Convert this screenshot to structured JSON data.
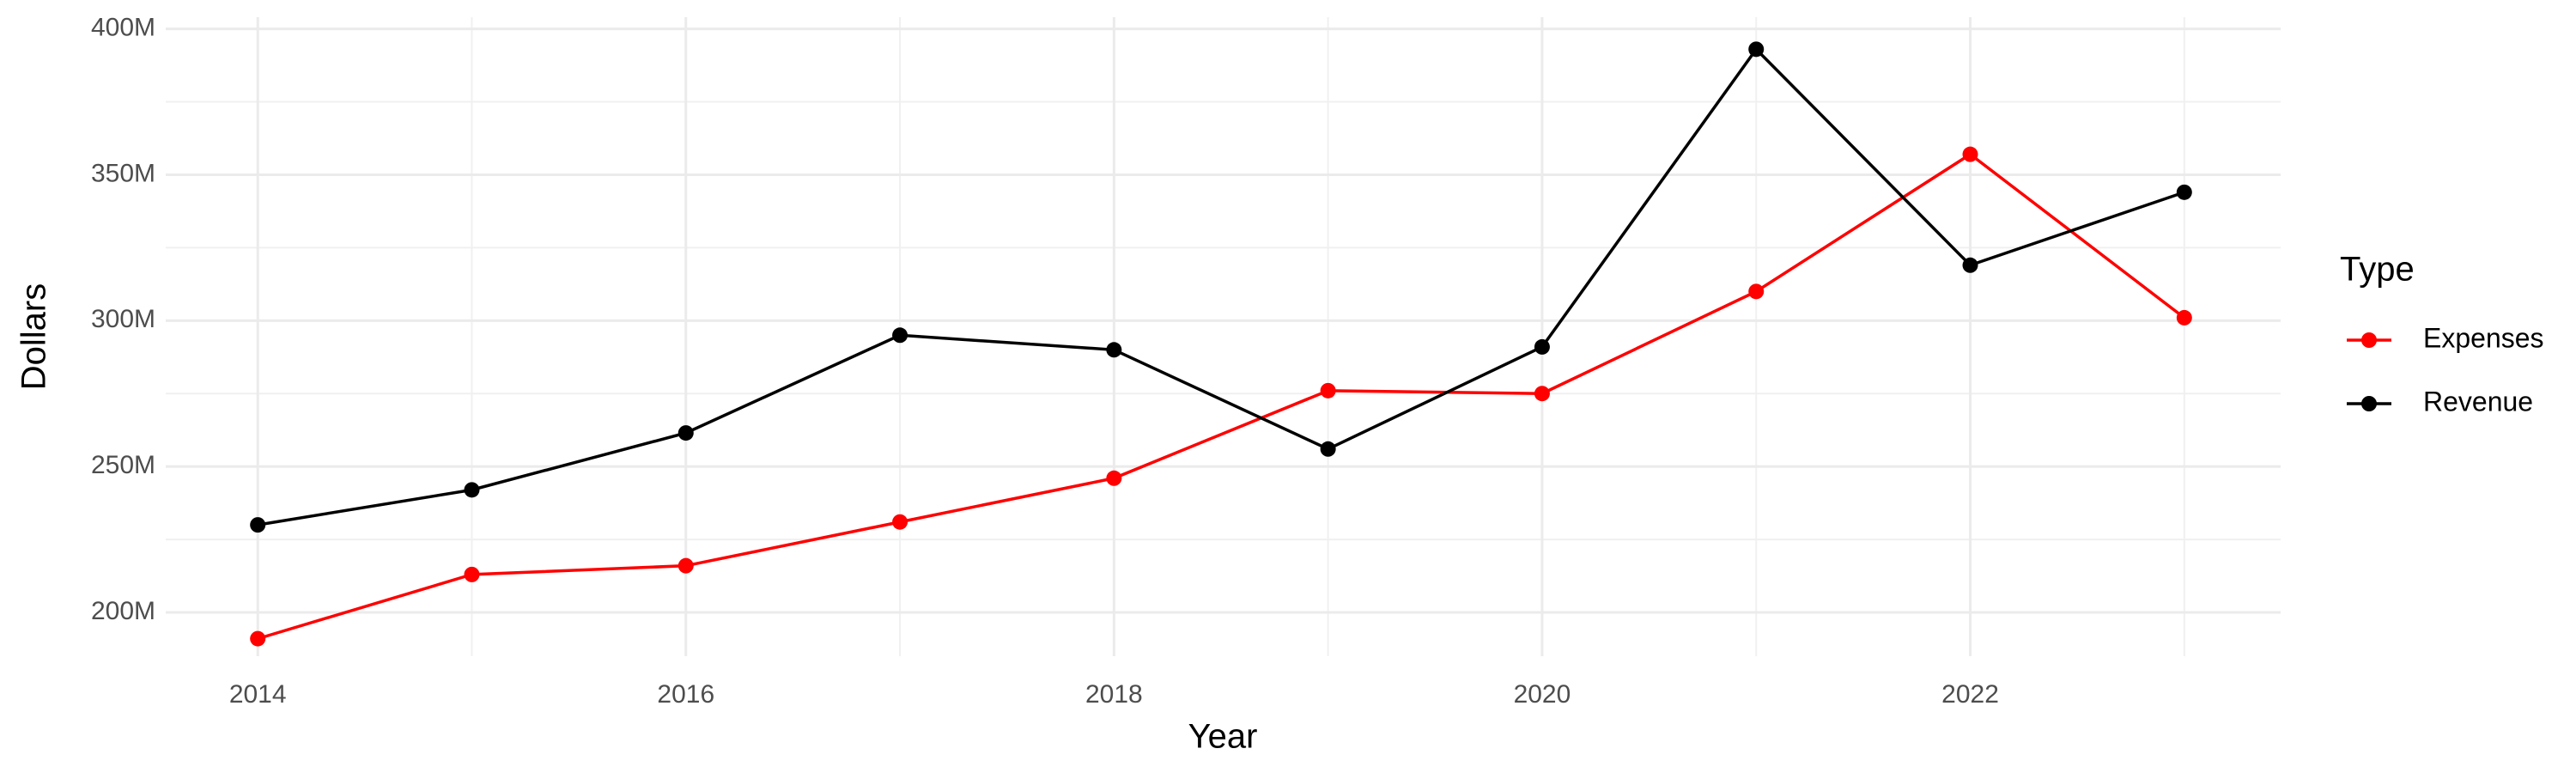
{
  "chart_data": {
    "type": "line",
    "x_label": "Year",
    "y_label": "Dollars",
    "legend_title": "Type",
    "x": [
      2014,
      2015,
      2016,
      2017,
      2018,
      2019,
      2020,
      2021,
      2022,
      2023
    ],
    "series": [
      {
        "name": "Expenses",
        "color": "#ff0000",
        "values": [
          191000000,
          213000000,
          216000000,
          231000000,
          246000000,
          276000000,
          275000000,
          310000000,
          357000000,
          301000000
        ]
      },
      {
        "name": "Revenue",
        "color": "#000000",
        "values": [
          230000000,
          242000000,
          261500000,
          295000000,
          290000000,
          256000000,
          291000000,
          393000000,
          319000000,
          344000000
        ]
      }
    ],
    "xlim": [
      2013.57,
      2023.45
    ],
    "xticks": [
      2014,
      2016,
      2018,
      2020,
      2022
    ],
    "ylim": [
      185000000,
      404000000
    ],
    "yticks": [
      {
        "value": 200000000,
        "label": "200M"
      },
      {
        "value": 250000000,
        "label": "250M"
      },
      {
        "value": 300000000,
        "label": "300M"
      },
      {
        "value": 350000000,
        "label": "350M"
      },
      {
        "value": 400000000,
        "label": "400M"
      }
    ],
    "grid": true,
    "legend": "right"
  }
}
